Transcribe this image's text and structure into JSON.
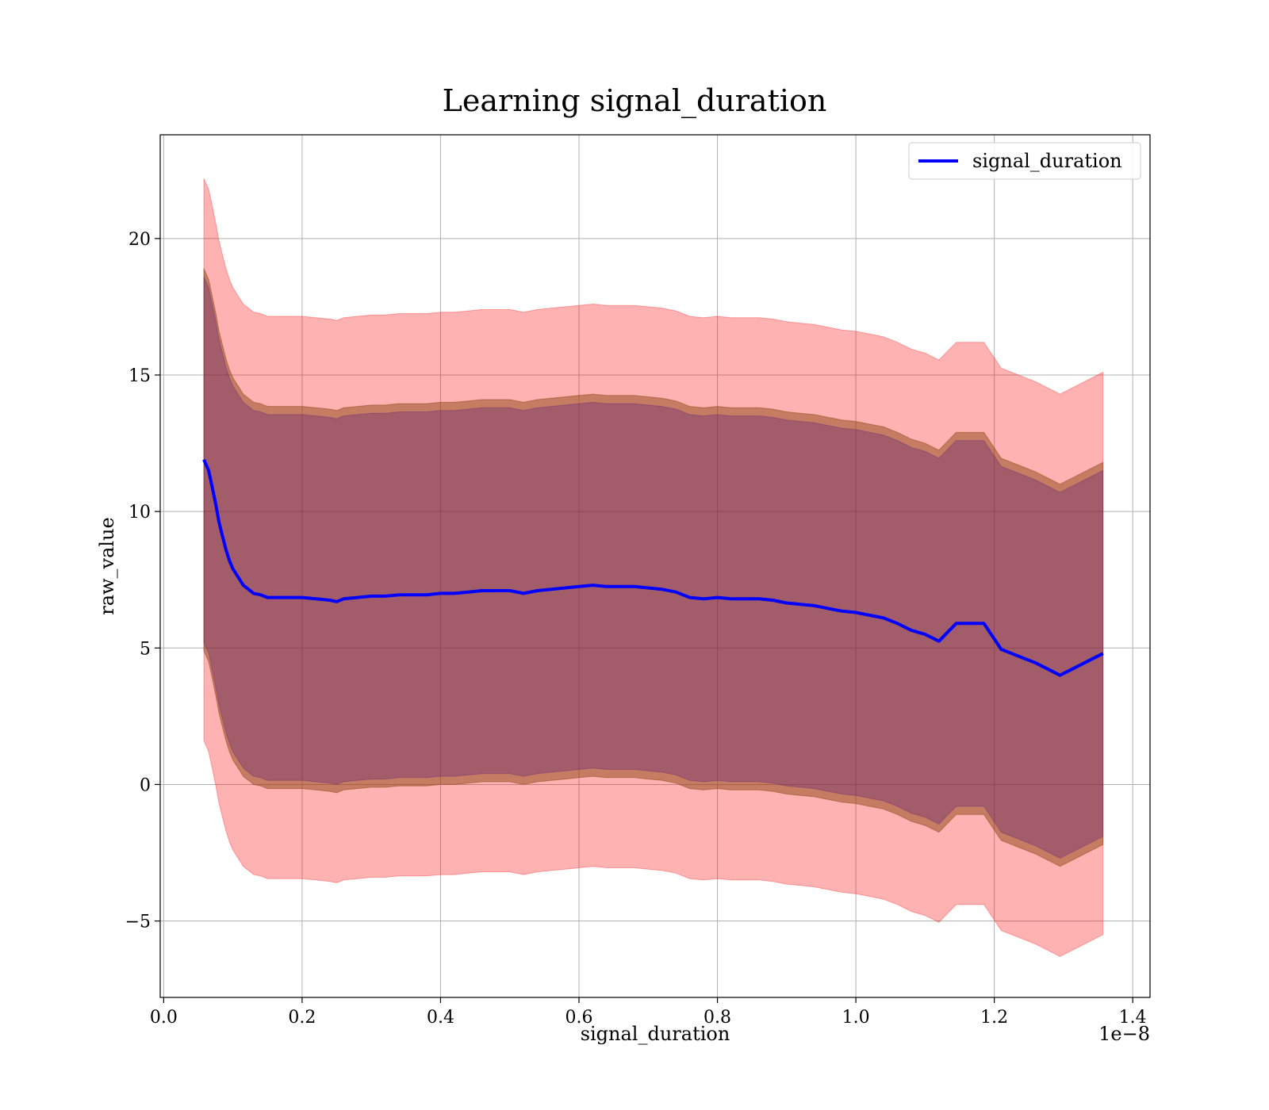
{
  "chart_data": {
    "type": "line",
    "title": "Learning signal_duration",
    "xlabel": "signal_duration",
    "ylabel": "raw_value",
    "x_offset_label": "1e−8",
    "xlim": [
      -0.005,
      1.425
    ],
    "ylim": [
      -7.8,
      23.8
    ],
    "x_ticks": [
      0.0,
      0.2,
      0.4,
      0.6,
      0.8,
      1.0,
      1.2,
      1.4
    ],
    "x_tick_labels": [
      "0.0",
      "0.2",
      "0.4",
      "0.6",
      "0.8",
      "1.0",
      "1.2",
      "1.4"
    ],
    "y_ticks": [
      -5,
      0,
      5,
      10,
      15,
      20
    ],
    "y_tick_labels": [
      "−5",
      "0",
      "5",
      "10",
      "15",
      "20"
    ],
    "grid": true,
    "legend_position": "top-right",
    "series": [
      {
        "name": "signal_duration",
        "color": "#0000ff",
        "x": [
          0.058,
          0.065,
          0.07,
          0.075,
          0.08,
          0.085,
          0.09,
          0.095,
          0.1,
          0.105,
          0.11,
          0.115,
          0.12,
          0.125,
          0.13,
          0.14,
          0.15,
          0.16,
          0.18,
          0.2,
          0.22,
          0.24,
          0.25,
          0.26,
          0.28,
          0.3,
          0.32,
          0.34,
          0.36,
          0.38,
          0.4,
          0.42,
          0.44,
          0.46,
          0.48,
          0.5,
          0.52,
          0.54,
          0.56,
          0.58,
          0.6,
          0.62,
          0.64,
          0.66,
          0.68,
          0.7,
          0.72,
          0.74,
          0.76,
          0.78,
          0.8,
          0.82,
          0.84,
          0.86,
          0.88,
          0.9,
          0.92,
          0.94,
          0.96,
          0.98,
          1.0,
          1.02,
          1.04,
          1.06,
          1.08,
          1.1,
          1.12,
          1.145,
          1.185,
          1.21,
          1.235,
          1.26,
          1.295,
          1.357
        ],
        "y": [
          11.9,
          11.5,
          10.9,
          10.3,
          9.6,
          9.1,
          8.6,
          8.2,
          7.9,
          7.7,
          7.5,
          7.3,
          7.2,
          7.1,
          7.0,
          6.95,
          6.85,
          6.85,
          6.85,
          6.85,
          6.8,
          6.75,
          6.7,
          6.8,
          6.85,
          6.9,
          6.9,
          6.95,
          6.95,
          6.95,
          7.0,
          7.0,
          7.05,
          7.1,
          7.1,
          7.1,
          7.0,
          7.1,
          7.15,
          7.2,
          7.25,
          7.3,
          7.25,
          7.25,
          7.25,
          7.2,
          7.15,
          7.05,
          6.85,
          6.8,
          6.85,
          6.8,
          6.8,
          6.8,
          6.75,
          6.65,
          6.6,
          6.55,
          6.45,
          6.35,
          6.3,
          6.2,
          6.1,
          5.9,
          5.65,
          5.5,
          5.25,
          5.9,
          5.9,
          4.95,
          4.7,
          4.45,
          4.0,
          4.8
        ]
      }
    ],
    "bands": [
      {
        "name": "outer",
        "color": "#ff0000",
        "opacity": 0.3,
        "half_width": [
          10.3,
          10.3,
          10.3,
          10.3,
          10.3,
          10.3,
          10.3,
          10.3,
          10.3,
          10.3,
          10.3,
          10.3,
          10.3,
          10.3,
          10.3,
          10.3,
          10.3,
          10.3,
          10.3,
          10.3,
          10.3,
          10.3,
          10.3,
          10.3,
          10.3,
          10.3,
          10.3,
          10.3,
          10.3,
          10.3,
          10.3,
          10.3,
          10.3,
          10.3,
          10.3,
          10.3,
          10.3,
          10.3,
          10.3,
          10.3,
          10.3,
          10.3,
          10.3,
          10.3,
          10.3,
          10.3,
          10.3,
          10.3,
          10.3,
          10.3,
          10.3,
          10.3,
          10.3,
          10.3,
          10.3,
          10.3,
          10.3,
          10.3,
          10.3,
          10.3,
          10.3,
          10.3,
          10.3,
          10.3,
          10.3,
          10.3,
          10.3,
          10.3,
          10.3,
          10.3,
          10.3,
          10.3,
          10.3,
          10.3
        ]
      },
      {
        "name": "middle",
        "color": "#8b4513",
        "opacity": 0.5,
        "half_width": [
          7.0,
          7.0,
          7.0,
          7.0,
          7.0,
          7.0,
          7.0,
          7.0,
          7.0,
          7.0,
          7.0,
          7.0,
          7.0,
          7.0,
          7.0,
          7.0,
          7.0,
          7.0,
          7.0,
          7.0,
          7.0,
          7.0,
          7.0,
          7.0,
          7.0,
          7.0,
          7.0,
          7.0,
          7.0,
          7.0,
          7.0,
          7.0,
          7.0,
          7.0,
          7.0,
          7.0,
          7.0,
          7.0,
          7.0,
          7.0,
          7.0,
          7.0,
          7.0,
          7.0,
          7.0,
          7.0,
          7.0,
          7.0,
          7.0,
          7.0,
          7.0,
          7.0,
          7.0,
          7.0,
          7.0,
          7.0,
          7.0,
          7.0,
          7.0,
          7.0,
          7.0,
          7.0,
          7.0,
          7.0,
          7.0,
          7.0,
          7.0,
          7.0,
          7.0,
          7.0,
          7.0,
          7.0,
          7.0,
          7.0
        ]
      },
      {
        "name": "inner",
        "color": "#400080",
        "opacity": 0.25,
        "half_width": [
          6.7,
          6.7,
          6.7,
          6.7,
          6.7,
          6.7,
          6.7,
          6.7,
          6.7,
          6.7,
          6.7,
          6.7,
          6.7,
          6.7,
          6.7,
          6.7,
          6.7,
          6.7,
          6.7,
          6.7,
          6.7,
          6.7,
          6.7,
          6.7,
          6.7,
          6.7,
          6.7,
          6.7,
          6.7,
          6.7,
          6.7,
          6.7,
          6.7,
          6.7,
          6.7,
          6.7,
          6.7,
          6.7,
          6.7,
          6.7,
          6.7,
          6.7,
          6.7,
          6.7,
          6.7,
          6.7,
          6.7,
          6.7,
          6.7,
          6.7,
          6.7,
          6.7,
          6.7,
          6.7,
          6.7,
          6.7,
          6.7,
          6.7,
          6.7,
          6.7,
          6.7,
          6.7,
          6.7,
          6.7,
          6.7,
          6.7,
          6.7,
          6.7,
          6.7,
          6.7,
          6.7,
          6.7,
          6.7,
          6.7
        ]
      }
    ]
  }
}
